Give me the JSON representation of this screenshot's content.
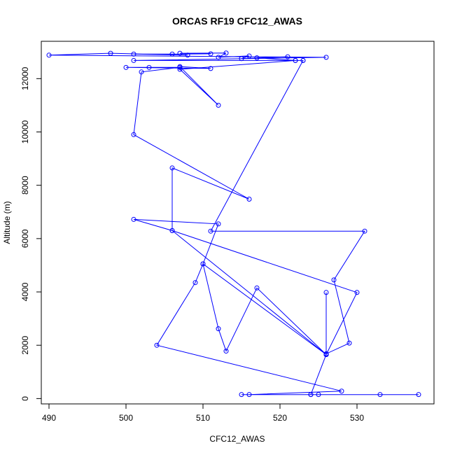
{
  "chart_data": {
    "type": "line",
    "title": "ORCAS RF19 CFC12_AWAS",
    "xlabel": "CFC12_AWAS",
    "ylabel": "Altitude (m)",
    "xlim": [
      489,
      540
    ],
    "ylim": [
      -200,
      13400
    ],
    "xticks": [
      490,
      500,
      510,
      520,
      530
    ],
    "yticks": [
      0,
      2000,
      4000,
      6000,
      8000,
      10000,
      12000
    ],
    "line_color": "#0000ff",
    "marker": "open-circle",
    "grid": false,
    "series": [
      {
        "points": [
          [
            515,
            150
          ],
          [
            538,
            150
          ],
          [
            533,
            150
          ],
          [
            525,
            150
          ],
          [
            524,
            150
          ],
          [
            516,
            150
          ],
          [
            528,
            280
          ],
          [
            504,
            2000
          ],
          [
            509,
            4350
          ],
          [
            510,
            5050
          ],
          [
            512,
            6550
          ],
          [
            501,
            6720
          ],
          [
            506,
            6300
          ],
          [
            506,
            8650
          ],
          [
            516,
            7480
          ],
          [
            501,
            9900
          ],
          [
            502,
            12250
          ],
          [
            507,
            12420
          ],
          [
            503,
            12420
          ],
          [
            500,
            12420
          ],
          [
            511,
            12380
          ],
          [
            507,
            12450
          ],
          [
            512,
            11000
          ],
          [
            507,
            12350
          ],
          [
            522,
            12680
          ],
          [
            523,
            12680
          ],
          [
            501,
            12680
          ],
          [
            526,
            12800
          ],
          [
            490,
            12880
          ],
          [
            498,
            12950
          ],
          [
            508,
            12880
          ],
          [
            501,
            12920
          ],
          [
            506,
            12920
          ],
          [
            511,
            12930
          ],
          [
            507,
            12950
          ],
          [
            513,
            12960
          ],
          [
            512,
            12800
          ],
          [
            516,
            12850
          ],
          [
            515,
            12750
          ],
          [
            521,
            12820
          ],
          [
            517,
            12780
          ],
          [
            522,
            12680
          ],
          [
            523,
            12680
          ],
          [
            511,
            6280
          ],
          [
            531,
            6280
          ],
          [
            527,
            4450
          ],
          [
            529,
            2080
          ],
          [
            526,
            1680
          ],
          [
            526,
            3980
          ],
          [
            526,
            1650
          ],
          [
            530,
            3980
          ],
          [
            506,
            6300
          ],
          [
            526,
            1650
          ],
          [
            517,
            4150
          ],
          [
            513,
            1780
          ],
          [
            512,
            2620
          ],
          [
            510,
            5050
          ],
          [
            526,
            1650
          ],
          [
            524,
            150
          ]
        ]
      }
    ]
  }
}
